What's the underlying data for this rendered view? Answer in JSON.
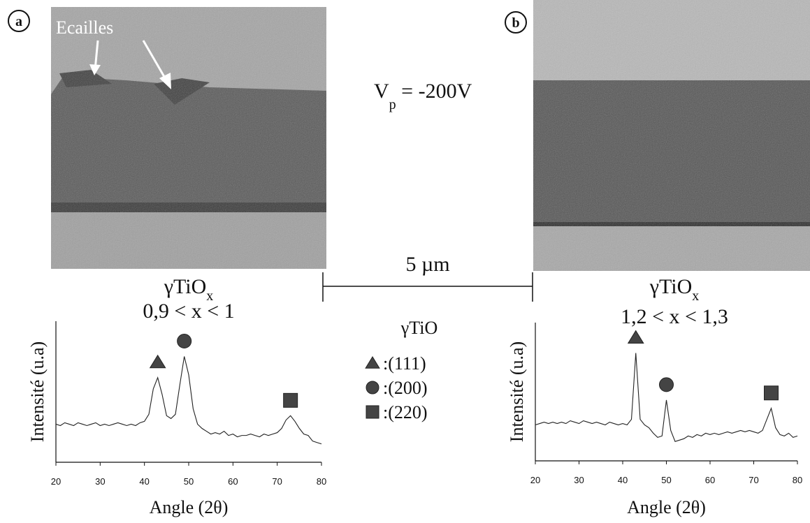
{
  "panels": [
    {
      "label": "a"
    },
    {
      "label": "b"
    }
  ],
  "annotation": "Ecailles",
  "voltage": {
    "symbol": "V",
    "subscript": "p",
    "text": " = -200V"
  },
  "scale_bar": "5 µm",
  "legend": {
    "title": "γTiO",
    "entries": [
      {
        "shape": "triangle",
        "label": ":(111)"
      },
      {
        "shape": "circle",
        "label": ":(200)"
      },
      {
        "shape": "square",
        "label": ":(220)"
      }
    ]
  },
  "chart_data": [
    {
      "type": "line",
      "title": "γTiO",
      "title_subscript": "x",
      "subtitle": "0,9 < x < 1",
      "xlabel": "Angle (2θ)",
      "ylabel": "Intensité (u.a)",
      "color": "#222",
      "x": [
        20,
        21,
        22,
        23,
        24,
        25,
        26,
        27,
        28,
        29,
        30,
        31,
        32,
        33,
        34,
        35,
        36,
        37,
        38,
        39,
        40,
        41,
        42,
        43,
        44,
        45,
        46,
        47,
        48,
        49,
        50,
        51,
        52,
        53,
        54,
        55,
        56,
        57,
        58,
        59,
        60,
        61,
        62,
        63,
        64,
        65,
        66,
        67,
        68,
        69,
        70,
        71,
        72,
        73,
        74,
        75,
        76,
        77,
        78,
        79,
        80
      ],
      "values": [
        27,
        26,
        28,
        27,
        26,
        28,
        27,
        26,
        27,
        28,
        26,
        27,
        26,
        27,
        28,
        27,
        26,
        27,
        26,
        28,
        29,
        34,
        52,
        60,
        48,
        33,
        31,
        34,
        55,
        75,
        62,
        38,
        27,
        24,
        22,
        20,
        21,
        20,
        22,
        19,
        20,
        18,
        19,
        19,
        20,
        19,
        18,
        20,
        19,
        20,
        21,
        24,
        30,
        33,
        29,
        24,
        20,
        19,
        15,
        14,
        13
      ],
      "markers": [
        {
          "shape": "triangle",
          "x": 43
        },
        {
          "shape": "circle",
          "x": 49
        },
        {
          "shape": "square",
          "x": 73
        }
      ],
      "xlim": [
        20,
        80
      ],
      "xticks": [
        20,
        30,
        40,
        50,
        60,
        70,
        80
      ],
      "ylim": [
        0,
        100
      ]
    },
    {
      "type": "line",
      "title": "γTiO",
      "title_subscript": "x",
      "subtitle": "1,2 < x < 1,3",
      "xlabel": "Angle (2θ)",
      "ylabel": "Intensité (u.a)",
      "color": "#222",
      "x": [
        20,
        21,
        22,
        23,
        24,
        25,
        26,
        27,
        28,
        29,
        30,
        31,
        32,
        33,
        34,
        35,
        36,
        37,
        38,
        39,
        40,
        41,
        42,
        43,
        44,
        45,
        46,
        47,
        48,
        49,
        50,
        51,
        52,
        53,
        54,
        55,
        56,
        57,
        58,
        59,
        60,
        61,
        62,
        63,
        64,
        65,
        66,
        67,
        68,
        69,
        70,
        71,
        72,
        73,
        74,
        75,
        76,
        77,
        78,
        79,
        80
      ],
      "values": [
        26,
        27,
        28,
        27,
        28,
        27,
        28,
        27,
        29,
        28,
        27,
        29,
        28,
        27,
        28,
        27,
        26,
        28,
        27,
        26,
        27,
        26,
        30,
        78,
        30,
        26,
        24,
        20,
        17,
        18,
        44,
        22,
        14,
        15,
        16,
        18,
        17,
        19,
        18,
        20,
        19,
        20,
        19,
        20,
        21,
        20,
        21,
        22,
        21,
        22,
        21,
        20,
        22,
        30,
        38,
        24,
        19,
        18,
        20,
        17,
        18
      ],
      "markers": [
        {
          "shape": "triangle",
          "x": 43
        },
        {
          "shape": "circle",
          "x": 50
        },
        {
          "shape": "square",
          "x": 74
        }
      ],
      "xlim": [
        20,
        80
      ],
      "xticks": [
        20,
        30,
        40,
        50,
        60,
        70,
        80
      ],
      "ylim": [
        0,
        100
      ]
    }
  ]
}
